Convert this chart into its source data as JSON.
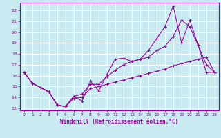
{
  "title": "",
  "xlabel": "Windchill (Refroidissement éolien,°C)",
  "ylabel": "",
  "bg_color": "#c8eaf0",
  "grid_color": "#ffffff",
  "line_color": "#990099",
  "xlim": [
    -0.5,
    23.5
  ],
  "ylim": [
    12.8,
    22.7
  ],
  "xticks": [
    0,
    1,
    2,
    3,
    4,
    5,
    6,
    7,
    8,
    9,
    10,
    11,
    12,
    13,
    14,
    15,
    16,
    17,
    18,
    19,
    20,
    21,
    22,
    23
  ],
  "yticks": [
    13,
    14,
    15,
    16,
    17,
    18,
    19,
    20,
    21,
    22
  ],
  "curve1_x": [
    0,
    1,
    2,
    3,
    4,
    5,
    6,
    7,
    8,
    9,
    10,
    11,
    12,
    13,
    14,
    15,
    16,
    17,
    18,
    19,
    20,
    21,
    22,
    23
  ],
  "curve1_y": [
    16.3,
    15.3,
    14.9,
    14.5,
    13.3,
    13.15,
    14.1,
    13.65,
    15.5,
    14.6,
    16.1,
    17.5,
    17.6,
    17.3,
    17.5,
    18.3,
    19.4,
    20.5,
    22.4,
    19.0,
    21.1,
    18.8,
    16.3,
    16.3
  ],
  "curve2_x": [
    0,
    1,
    2,
    3,
    4,
    5,
    6,
    7,
    8,
    9,
    10,
    11,
    12,
    13,
    14,
    15,
    16,
    17,
    18,
    19,
    20,
    21,
    22,
    23
  ],
  "curve2_y": [
    16.3,
    15.3,
    14.9,
    14.5,
    13.3,
    13.15,
    14.1,
    14.3,
    15.2,
    15.2,
    15.9,
    16.5,
    17.0,
    17.3,
    17.5,
    17.7,
    18.3,
    18.7,
    19.6,
    21.1,
    20.5,
    18.8,
    17.0,
    16.3
  ],
  "curve3_x": [
    0,
    1,
    2,
    3,
    4,
    5,
    6,
    7,
    8,
    9,
    10,
    11,
    12,
    13,
    14,
    15,
    16,
    17,
    18,
    19,
    20,
    21,
    22,
    23
  ],
  "curve3_y": [
    16.3,
    15.3,
    14.9,
    14.5,
    13.3,
    13.15,
    13.9,
    14.0,
    14.8,
    15.0,
    15.2,
    15.4,
    15.6,
    15.8,
    16.0,
    16.2,
    16.4,
    16.6,
    16.9,
    17.1,
    17.3,
    17.5,
    17.7,
    16.3
  ]
}
